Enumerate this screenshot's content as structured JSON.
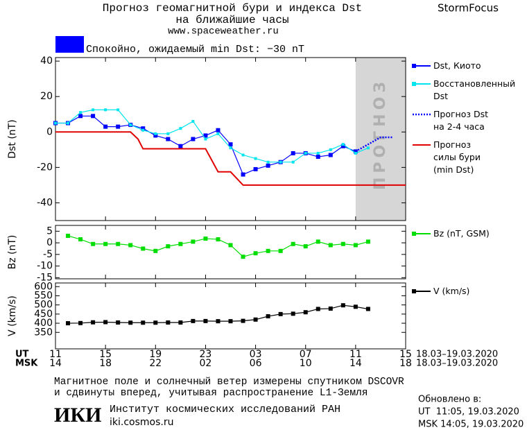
{
  "header": {
    "title_line1": "Прогноз геомагнитной бури и индекса Dst",
    "title_line2": "на ближайшие часы",
    "url": "www.spaceweather.ru",
    "brand": "StormFocus",
    "status": "Спокойно, ожидаемый min Dst: −30 nT",
    "status_color": "#0000ff"
  },
  "x_axis": {
    "xlim": [
      0,
      28
    ],
    "ut_title": "UT",
    "msk_title": "MSK",
    "ticks": [
      {
        "value": 0,
        "label": "11"
      },
      {
        "value": 4,
        "label": "15"
      },
      {
        "value": 8,
        "label": "19"
      },
      {
        "value": 12,
        "label": "23"
      },
      {
        "value": 16,
        "label": "03"
      },
      {
        "value": 20,
        "label": "07"
      },
      {
        "value": 24,
        "label": "11"
      },
      {
        "value": 28,
        "label": "15"
      }
    ],
    "msk_labels": [
      "14",
      "18",
      "22",
      "02",
      "06",
      "10",
      "14",
      "18"
    ],
    "ut_dates": "18.03–19.03.2020",
    "msk_dates": "18.03–19.03.2020"
  },
  "chart_data": [
    {
      "type": "line",
      "ylabel": "Dst (nT)",
      "ylim": [
        -50,
        42
      ],
      "yticks": [
        40,
        20,
        0,
        -20,
        -40
      ],
      "forecast": {
        "xlim": [
          24,
          28
        ],
        "label": "ПРОГНОЗ"
      },
      "series": [
        {
          "name": "Dst, Киото",
          "color": "#0000ff",
          "marker": "square",
          "dash": false,
          "x": [
            0,
            1,
            2,
            3,
            4,
            5,
            6,
            7,
            8,
            9,
            10,
            11,
            12,
            13,
            14,
            15,
            16,
            17,
            18,
            19,
            20,
            21,
            22,
            23,
            24
          ],
          "values": [
            5,
            5,
            9,
            9,
            3,
            3,
            4,
            2,
            -2,
            -4,
            -8,
            -4,
            -2,
            1,
            -7,
            -24,
            -21,
            -19,
            -17,
            -12,
            -12,
            -14,
            -13,
            -8,
            -11
          ]
        },
        {
          "name": "Восстановленный\nDst",
          "color": "#00e5ee",
          "marker": "small-square",
          "dash": false,
          "x": [
            0,
            1,
            2,
            3,
            4,
            5,
            6,
            7,
            8,
            9,
            10,
            11,
            12,
            13,
            14,
            15,
            16,
            17,
            18,
            19,
            20,
            21,
            22,
            23,
            24,
            25
          ],
          "values": [
            5,
            5,
            11,
            12.5,
            12.5,
            12.5,
            4,
            1,
            -1,
            -1,
            2,
            6,
            -4,
            -1,
            -9,
            -13,
            -15,
            -17,
            -17,
            -17,
            -12,
            -12,
            -10,
            -7,
            -12,
            -9
          ]
        },
        {
          "name": "Прогноз Dst\nна 2-4 часа",
          "color": "#0000ff",
          "marker": "none",
          "dash": true,
          "x": [
            24,
            25,
            26,
            27
          ],
          "values": [
            -11,
            -7,
            -3,
            -3
          ]
        },
        {
          "name": "Прогноз\nсилы бури\n(min Dst)",
          "color": "#e00000",
          "marker": "none",
          "dash": false,
          "x": [
            0,
            6,
            6.6,
            7,
            12,
            13,
            14,
            15,
            28
          ],
          "values": [
            0,
            0,
            -4,
            -9.5,
            -9.5,
            -22.5,
            -22.5,
            -30,
            -30
          ]
        }
      ]
    },
    {
      "type": "line",
      "ylabel": "Bz (nT)",
      "ylim": [
        -15.5,
        7.5
      ],
      "yticks": [
        5,
        0,
        -5,
        -10,
        -15
      ],
      "series": [
        {
          "name": "Bz (nT, GSM)",
          "color": "#00dd00",
          "marker": "square",
          "dash": false,
          "x": [
            1,
            2,
            3,
            4,
            5,
            6,
            7,
            8,
            9,
            10,
            11,
            12,
            13,
            14,
            15,
            16,
            17,
            18,
            19,
            20,
            21,
            22,
            23,
            24,
            25
          ],
          "values": [
            3,
            1.5,
            -0.5,
            -0.5,
            -0.5,
            -1,
            -2.5,
            -3.5,
            -1.5,
            -0.5,
            0.5,
            1.8,
            1.5,
            -1,
            -6,
            -4.5,
            -3.5,
            -3.5,
            -0.5,
            -1.5,
            0.5,
            -1,
            -0.5,
            -1,
            0.5
          ]
        }
      ]
    },
    {
      "type": "line",
      "ylabel": "V (km/s)",
      "ylim": [
        260,
        620
      ],
      "yticks": [
        350,
        400,
        450,
        500,
        550,
        600
      ],
      "series": [
        {
          "name": "V (km/s)",
          "color": "#000000",
          "marker": "square",
          "dash": false,
          "x": [
            1,
            2,
            3,
            4,
            5,
            6,
            7,
            8,
            9,
            10,
            11,
            12,
            13,
            14,
            15,
            16,
            17,
            18,
            19,
            20,
            21,
            22,
            23,
            24,
            25
          ],
          "values": [
            400,
            401,
            405,
            406,
            404,
            403,
            403,
            403,
            404,
            404,
            412,
            412,
            411,
            411,
            413,
            420,
            438,
            450,
            452,
            460,
            478,
            480,
            498,
            490,
            478
          ]
        }
      ]
    }
  ],
  "footer": {
    "note_line1": "Магнитное поле и солнечный ветер измерены спутником DSCOVR",
    "note_line2": "и сдвинуты вперед, учитывая распространение L1-Земля",
    "logo": "ИКИ",
    "institute": "Институт космических исследований РАН",
    "institute_url": "iki.cosmos.ru",
    "updated": "Обновлено в:",
    "updated_ut": "UT  11:05, 19.03.2020",
    "updated_msk": "MSK 14:05, 19.03.2020"
  }
}
